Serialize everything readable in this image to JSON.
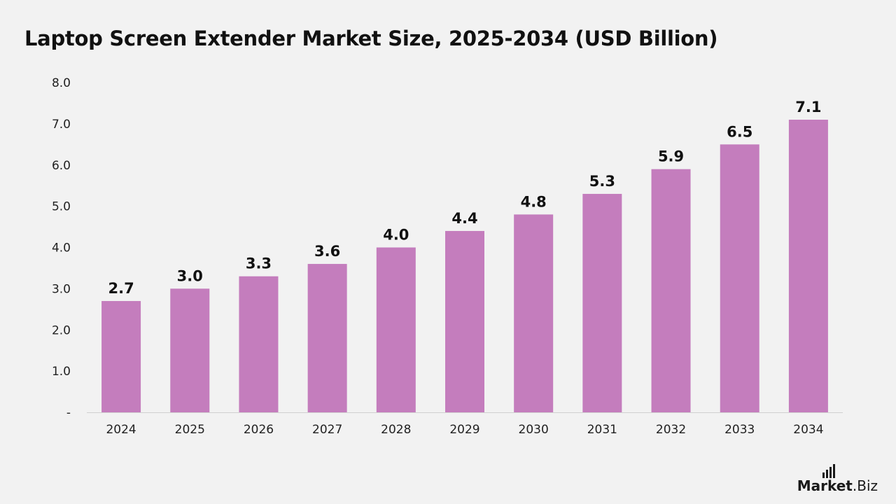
{
  "title": "Laptop Screen Extender Market Size, 2025-2034 (USD Billion)",
  "chart_data": {
    "type": "bar",
    "title": "Laptop Screen Extender Market Size, 2025-2034 (USD Billion)",
    "xlabel": "",
    "ylabel": "",
    "categories": [
      "2024",
      "2025",
      "2026",
      "2027",
      "2028",
      "2029",
      "2030",
      "2031",
      "2032",
      "2033",
      "2034"
    ],
    "values": [
      2.7,
      3.0,
      3.3,
      3.6,
      4.0,
      4.4,
      4.8,
      5.3,
      5.9,
      6.5,
      7.1
    ],
    "data_labels": [
      "2.7",
      "3.0",
      "3.3",
      "3.6",
      "4.0",
      "4.4",
      "4.8",
      "5.3",
      "5.9",
      "6.5",
      "7.1"
    ],
    "ylim": [
      0,
      8
    ],
    "yticks": [
      0,
      1,
      2,
      3,
      4,
      5,
      6,
      7,
      8
    ],
    "ytick_labels": [
      "-",
      "1.0",
      "2.0",
      "3.0",
      "4.0",
      "5.0",
      "6.0",
      "7.0",
      "8.0"
    ],
    "grid": false,
    "legend": "none",
    "bar_color": "#c47dbd",
    "axis_color": "#d0d0d0"
  },
  "logo": {
    "bold": "Market",
    "regular": ".Biz",
    "icon": "bar-signal-icon"
  }
}
